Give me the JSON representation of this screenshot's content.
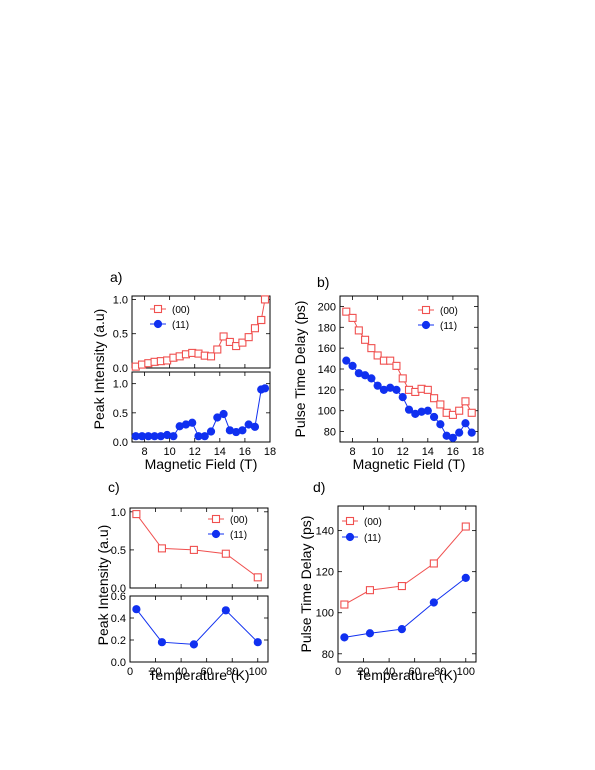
{
  "colors": {
    "series_00": "#f0504f",
    "series_11": "#1030f0",
    "axis": "#000000"
  },
  "chart_data": [
    {
      "id": "a",
      "panel_label": "a)",
      "type": "line",
      "xlabel": "Magnetic Field (T)",
      "ylabel": "Peak Intensity (a.u)",
      "xlim": [
        7,
        18
      ],
      "xticks": [
        8,
        10,
        12,
        14,
        16,
        18
      ],
      "subplots": [
        {
          "ylim": [
            0,
            1.05
          ],
          "yticks": [
            0.0,
            0.5,
            1.0
          ],
          "yticklabels": [
            "0.0",
            "0.5",
            "1.0"
          ],
          "series": [
            {
              "name": "(00)",
              "marker": "square-open",
              "color": "#f0504f",
              "x": [
                7.3,
                7.8,
                8.3,
                8.8,
                9.3,
                9.8,
                10.3,
                10.8,
                11.3,
                11.8,
                12.3,
                12.8,
                13.3,
                13.8,
                14.3,
                14.8,
                15.3,
                15.8,
                16.3,
                16.8,
                17.3
              ],
              "y": [
                0.02,
                0.05,
                0.07,
                0.09,
                0.1,
                0.11,
                0.15,
                0.17,
                0.2,
                0.22,
                0.21,
                0.18,
                0.17,
                0.27,
                0.46,
                0.38,
                0.32,
                0.37,
                0.45,
                0.58,
                0.7
              ]
            },
            {
              "name": "",
              "marker": "square-open",
              "color": "#f0504f",
              "x": [
                17.3,
                17.6
              ],
              "y": [
                0.7,
                1.0
              ]
            }
          ]
        },
        {
          "ylim": [
            0,
            1.2
          ],
          "yticks": [
            0.0,
            0.5,
            1.0
          ],
          "yticklabels": [
            "0.0",
            "0.5",
            "1.0"
          ],
          "series": [
            {
              "name": "(11)",
              "marker": "circle-filled",
              "color": "#1030f0",
              "x": [
                7.3,
                7.8,
                8.3,
                8.8,
                9.3,
                9.8,
                10.3,
                10.8,
                11.3,
                11.8,
                12.3,
                12.8,
                13.3,
                13.8,
                14.3,
                14.8,
                15.3,
                15.8,
                16.3,
                16.8,
                17.3,
                17.6
              ],
              "y": [
                0.1,
                0.1,
                0.1,
                0.1,
                0.1,
                0.12,
                0.1,
                0.27,
                0.3,
                0.33,
                0.1,
                0.1,
                0.18,
                0.42,
                0.48,
                0.2,
                0.17,
                0.2,
                0.3,
                0.26,
                0.9,
                0.92
              ]
            }
          ]
        }
      ]
    },
    {
      "id": "b",
      "panel_label": "b)",
      "type": "line",
      "xlabel": "Magnetic Field (T)",
      "ylabel": "Pulse Time Delay (ps)",
      "xlim": [
        7,
        18
      ],
      "xticks": [
        8,
        10,
        12,
        14,
        16,
        18
      ],
      "ylim": [
        70,
        210
      ],
      "yticks": [
        80,
        100,
        120,
        140,
        160,
        180,
        200
      ],
      "legend": "top-right",
      "series": [
        {
          "name": "(00)",
          "marker": "square-open",
          "color": "#f0504f",
          "x": [
            7.5,
            8.0,
            8.5,
            9.0,
            9.5,
            10.0,
            10.5,
            11.0,
            11.5,
            12.0,
            12.5,
            13.0,
            13.5,
            14.0,
            14.5,
            15.0,
            15.5,
            16.0,
            16.5,
            17.0,
            17.5
          ],
          "y": [
            195,
            189,
            177,
            168,
            160,
            153,
            148,
            148,
            143,
            131,
            120,
            118,
            121,
            120,
            112,
            106,
            98,
            96,
            100,
            109,
            98
          ]
        },
        {
          "name": "(11)",
          "marker": "circle-filled",
          "color": "#1030f0",
          "x": [
            7.5,
            8.0,
            8.5,
            9.0,
            9.5,
            10.0,
            10.5,
            11.0,
            11.5,
            12.0,
            12.5,
            13.0,
            13.5,
            14.0,
            14.5,
            15.0,
            15.5,
            16.0,
            16.5,
            17.0,
            17.5
          ],
          "y": [
            148,
            143,
            136,
            134,
            131,
            124,
            120,
            122,
            120,
            113,
            101,
            97,
            99,
            100,
            94,
            87,
            76,
            74,
            79,
            88,
            79
          ]
        }
      ]
    },
    {
      "id": "c",
      "panel_label": "c)",
      "type": "line",
      "xlabel": "Temperature (K)",
      "ylabel": "Peak Intensity (a.u)",
      "xlim": [
        0,
        108
      ],
      "xticks": [
        0,
        20,
        40,
        60,
        80,
        100
      ],
      "subplots": [
        {
          "ylim": [
            0,
            1.05
          ],
          "yticks": [
            0.0,
            0.5,
            1.0
          ],
          "yticklabels": [
            "0.0",
            "0.5",
            "1.0"
          ],
          "legend": "top-right",
          "series": [
            {
              "name": "(00)",
              "marker": "square-open",
              "color": "#f0504f",
              "x": [
                5,
                25,
                50,
                75,
                100
              ],
              "y": [
                0.97,
                0.52,
                0.5,
                0.45,
                0.14
              ]
            }
          ]
        },
        {
          "ylim": [
            0,
            0.6
          ],
          "yticks": [
            0.0,
            0.2,
            0.4,
            0.6
          ],
          "yticklabels": [
            "0.0",
            "0.2",
            "0.4",
            "0.6"
          ],
          "series": [
            {
              "name": "(11)",
              "marker": "circle-filled",
              "color": "#1030f0",
              "x": [
                5,
                25,
                50,
                75,
                100
              ],
              "y": [
                0.48,
                0.18,
                0.16,
                0.47,
                0.18
              ]
            }
          ]
        }
      ]
    },
    {
      "id": "d",
      "panel_label": "d)",
      "type": "line",
      "xlabel": "Temperature (K)",
      "ylabel": "Pulse Time Delay (ps)",
      "xlim": [
        0,
        108
      ],
      "xticks": [
        0,
        20,
        40,
        60,
        80,
        100
      ],
      "ylim": [
        76,
        152
      ],
      "yticks": [
        80,
        100,
        120,
        140
      ],
      "legend": "top-left",
      "series": [
        {
          "name": "(00)",
          "marker": "square-open",
          "color": "#f0504f",
          "x": [
            5,
            25,
            50,
            75,
            100
          ],
          "y": [
            104,
            111,
            113,
            124,
            142
          ]
        },
        {
          "name": "(11)",
          "marker": "circle-filled",
          "color": "#1030f0",
          "x": [
            5,
            25,
            50,
            75,
            100
          ],
          "y": [
            88,
            90,
            92,
            105,
            117
          ]
        }
      ]
    }
  ]
}
